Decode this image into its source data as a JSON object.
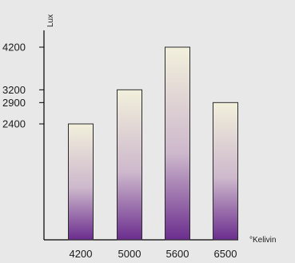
{
  "chart_data": {
    "type": "bar",
    "categories": [
      "4200",
      "5000",
      "5600",
      "6500"
    ],
    "values": [
      2400,
      3200,
      4200,
      2900
    ],
    "y_ticks": [
      2400,
      2900,
      3200,
      4200
    ],
    "y_tick_labels": [
      "2400",
      "2900",
      "3200",
      "4200"
    ],
    "ylim": [
      0,
      4500
    ],
    "xlabel": "°Kelivin",
    "ylabel": "Lux",
    "grid": false,
    "legend": "none",
    "colors": {
      "background": "#e8e8e8",
      "bar_top": "#f2f0dc",
      "bar_mid": "#cdb8cc",
      "bar_bottom": "#6b2d8e",
      "bar_stroke": "#2b2b2b",
      "axis": "#000000"
    }
  }
}
